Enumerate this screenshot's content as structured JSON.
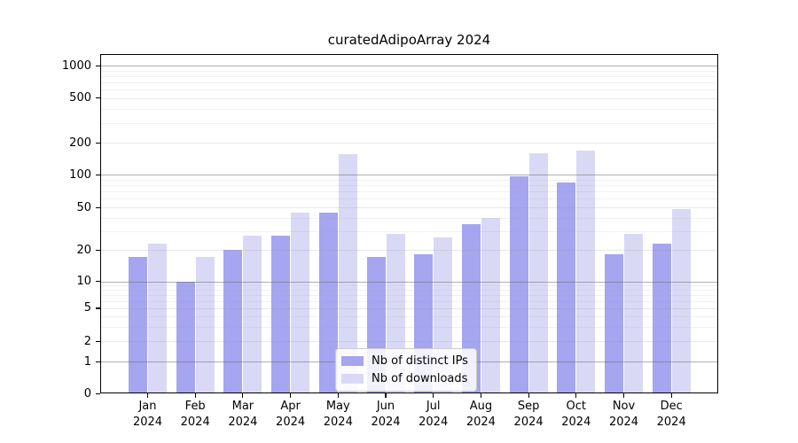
{
  "figure": {
    "title": "curatedAdipoArray 2024"
  },
  "chart_data": {
    "type": "bar",
    "title": "curatedAdipoArray 2024",
    "yscale": "log above 1, linear segment 0-1 (symlog-like)",
    "grid": true,
    "legend_position": "lower center",
    "categories": [
      "Jan 2024",
      "Feb 2024",
      "Mar 2024",
      "Apr 2024",
      "May 2024",
      "Jun 2024",
      "Jul 2024",
      "Aug 2024",
      "Sep 2024",
      "Oct 2024",
      "Nov 2024",
      "Dec 2024"
    ],
    "series": [
      {
        "name": "Nb of distinct IPs",
        "color": "#a5a5f0",
        "values": [
          17,
          10,
          20,
          27,
          45,
          17,
          18,
          35,
          97,
          85,
          18,
          23
        ]
      },
      {
        "name": "Nb of downloads",
        "color": "#d9d9f6",
        "values": [
          23,
          17,
          27,
          45,
          155,
          28,
          26,
          40,
          160,
          170,
          28,
          48
        ]
      }
    ],
    "y_ticks": [
      0,
      1,
      2,
      5,
      10,
      20,
      50,
      100,
      200,
      500,
      1000
    ],
    "ylim": [
      0,
      1300
    ],
    "axis_color": "#000000",
    "grid_major_color": "#b0b0b0",
    "grid_minor_color": "#e8e8e8"
  }
}
